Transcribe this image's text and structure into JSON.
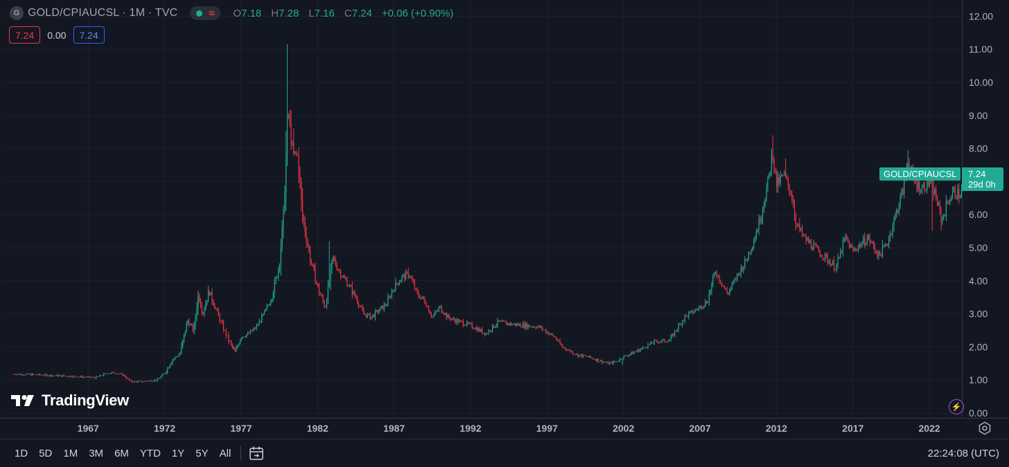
{
  "legend": {
    "symbol_letter": "G",
    "symbol_text": "GOLD/CPIAUCSL · 1M · TVC",
    "open_label": "O",
    "open": "7.18",
    "high_label": "H",
    "high": "7.28",
    "low_label": "L",
    "low": "7.16",
    "close_label": "C",
    "close": "7.24",
    "change": "+0.06 (+0.90%)",
    "wave_glyph": "≈"
  },
  "studies": {
    "value1": "7.24",
    "value2": "0.00",
    "value3": "7.24"
  },
  "logo": {
    "text": "TradingView",
    "icon": "tradingview-logo-icon"
  },
  "price_tag": {
    "name": "GOLD/CPIAUCSL",
    "price": "7.24",
    "countdown": "29d 0h"
  },
  "bottom_bar": {
    "periods": [
      "1D",
      "5D",
      "1M",
      "3M",
      "6M",
      "YTD",
      "1Y",
      "5Y",
      "All"
    ],
    "clock": "22:24:08 (UTC)"
  },
  "colors": {
    "background": "#131722",
    "up": "#22ab94",
    "down": "#f23645",
    "grid": "#1e222d",
    "text": "#b2b5be"
  },
  "chart_data": {
    "type": "candlestick",
    "series_name": "GOLD/CPIAUCSL",
    "interval": "1M",
    "y_ticks": [
      "0.00",
      "1.00",
      "2.00",
      "3.00",
      "4.00",
      "5.00",
      "6.00",
      "7.00",
      "8.00",
      "9.00",
      "10.00",
      "11.00",
      "12.00"
    ],
    "x_ticks": [
      "1967",
      "1972",
      "1977",
      "1982",
      "1987",
      "1992",
      "1997",
      "2002",
      "2007",
      "2012",
      "2017",
      "2022"
    ],
    "ylim": [
      0,
      12
    ],
    "xlim": [
      1962.1,
      2024.65
    ],
    "grid": true,
    "last_price": 7.24,
    "path_points": [
      [
        1962.1,
        1.18
      ],
      [
        1964,
        1.15
      ],
      [
        1966,
        1.11
      ],
      [
        1967.5,
        1.07
      ],
      [
        1968.2,
        1.2
      ],
      [
        1968.8,
        1.22
      ],
      [
        1969.3,
        1.15
      ],
      [
        1969.8,
        0.95
      ],
      [
        1970.5,
        0.95
      ],
      [
        1971.5,
        1.0
      ],
      [
        1972,
        1.2
      ],
      [
        1972.5,
        1.6
      ],
      [
        1973,
        1.8
      ],
      [
        1973.5,
        2.8
      ],
      [
        1973.9,
        2.5
      ],
      [
        1974.2,
        3.6
      ],
      [
        1974.5,
        3.0
      ],
      [
        1974.9,
        3.7
      ],
      [
        1975.3,
        3.2
      ],
      [
        1975.8,
        2.6
      ],
      [
        1976.3,
        2.1
      ],
      [
        1976.6,
        1.85
      ],
      [
        1977,
        2.3
      ],
      [
        1977.5,
        2.4
      ],
      [
        1978,
        2.6
      ],
      [
        1978.5,
        3.0
      ],
      [
        1979,
        3.5
      ],
      [
        1979.5,
        4.5
      ],
      [
        1979.8,
        6.2
      ],
      [
        1980.05,
        9.2
      ],
      [
        1980.4,
        7.8
      ],
      [
        1980.7,
        7.8
      ],
      [
        1981,
        6.0
      ],
      [
        1981.5,
        4.7
      ],
      [
        1982,
        3.8
      ],
      [
        1982.5,
        3.2
      ],
      [
        1983,
        4.7
      ],
      [
        1983.4,
        4.3
      ],
      [
        1984,
        3.9
      ],
      [
        1984.5,
        3.5
      ],
      [
        1985,
        3.0
      ],
      [
        1985.5,
        2.9
      ],
      [
        1986,
        3.1
      ],
      [
        1986.5,
        3.3
      ],
      [
        1987,
        3.8
      ],
      [
        1987.5,
        4.1
      ],
      [
        1988,
        4.2
      ],
      [
        1988.5,
        3.6
      ],
      [
        1989,
        3.4
      ],
      [
        1989.5,
        2.9
      ],
      [
        1990,
        3.2
      ],
      [
        1990.5,
        2.9
      ],
      [
        1991,
        2.8
      ],
      [
        1992,
        2.65
      ],
      [
        1993,
        2.4
      ],
      [
        1993.8,
        2.75
      ],
      [
        1994.5,
        2.7
      ],
      [
        1995.5,
        2.65
      ],
      [
        1996.5,
        2.6
      ],
      [
        1997.5,
        2.3
      ],
      [
        1998,
        2.0
      ],
      [
        1999,
        1.75
      ],
      [
        1999.7,
        1.7
      ],
      [
        2000,
        1.65
      ],
      [
        2001,
        1.5
      ],
      [
        2001.5,
        1.55
      ],
      [
        2002,
        1.7
      ],
      [
        2003,
        1.9
      ],
      [
        2004,
        2.15
      ],
      [
        2005,
        2.2
      ],
      [
        2006,
        2.9
      ],
      [
        2007,
        3.2
      ],
      [
        2007.5,
        3.4
      ],
      [
        2008,
        4.3
      ],
      [
        2008.8,
        3.6
      ],
      [
        2009.5,
        4.2
      ],
      [
        2010,
        4.6
      ],
      [
        2010.5,
        5.2
      ],
      [
        2011,
        6.0
      ],
      [
        2011.5,
        7.1
      ],
      [
        2011.75,
        7.9
      ],
      [
        2012,
        6.9
      ],
      [
        2012.5,
        7.2
      ],
      [
        2013,
        6.6
      ],
      [
        2013.3,
        5.7
      ],
      [
        2013.8,
        5.3
      ],
      [
        2014.5,
        5.0
      ],
      [
        2015.2,
        4.7
      ],
      [
        2015.9,
        4.4
      ],
      [
        2016.5,
        5.3
      ],
      [
        2017,
        4.9
      ],
      [
        2017.5,
        5.1
      ],
      [
        2018,
        5.3
      ],
      [
        2018.7,
        4.75
      ],
      [
        2019.3,
        5.2
      ],
      [
        2019.8,
        6.0
      ],
      [
        2020.3,
        6.8
      ],
      [
        2020.6,
        7.7
      ],
      [
        2021,
        7.0
      ],
      [
        2021.5,
        6.8
      ],
      [
        2022,
        7.0
      ],
      [
        2022.4,
        6.6
      ],
      [
        2022.8,
        5.8
      ],
      [
        2023.2,
        6.4
      ],
      [
        2023.6,
        6.7
      ],
      [
        2024,
        6.6
      ],
      [
        2024.4,
        7.0
      ],
      [
        2024.65,
        7.24
      ]
    ],
    "spikes": [
      [
        1980.05,
        11.15
      ],
      [
        1980.4,
        8.6
      ],
      [
        1982.8,
        5.2
      ],
      [
        1987.9,
        4.4
      ],
      [
        2001.9,
        1.45
      ],
      [
        2011.75,
        8.4
      ],
      [
        2012.6,
        7.7
      ],
      [
        2013.5,
        5.9
      ],
      [
        2020.6,
        7.95
      ],
      [
        2022.2,
        5.5
      ]
    ]
  }
}
